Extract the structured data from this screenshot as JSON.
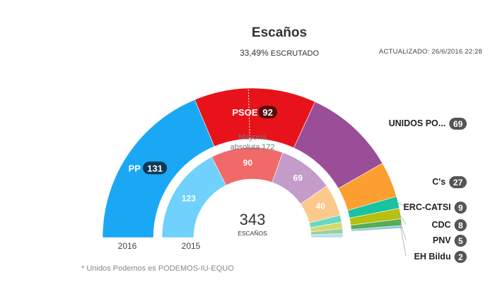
{
  "header": {
    "title": "Escaños",
    "escrutado_pct": "33,49%",
    "escrutado_label": "ESCRUTADO",
    "updated": "ACTUALIZADO: 26/6/2016 22:28"
  },
  "majority": {
    "line1": "Mayoría",
    "line2": "absoluta 172"
  },
  "center": {
    "total": "343",
    "label": "ESCAÑOS"
  },
  "year_labels": {
    "outer": "2016",
    "inner": "2015"
  },
  "footnote": "* Unidos Podemos es PODEMOS-IU-EQUO",
  "chart_data": [
    {
      "type": "donut",
      "title": "2016",
      "total": 350,
      "series": [
        {
          "name": "PP",
          "value": 131,
          "color": "#1aa8f5"
        },
        {
          "name": "PSOE",
          "value": 92,
          "color": "#e8131a"
        },
        {
          "name": "UNIDOS PO...",
          "value": 69,
          "color": "#9b4e98"
        },
        {
          "name": "C's",
          "value": 27,
          "color": "#fb9f30"
        },
        {
          "name": "ERC-CATSI",
          "value": 9,
          "color": "#19c2a1"
        },
        {
          "name": "CDC",
          "value": 8,
          "color": "#b7bf10"
        },
        {
          "name": "PNV",
          "value": 5,
          "color": "#58ac55"
        },
        {
          "name": "EH Bildu",
          "value": 2,
          "color": "#89c9dd"
        }
      ]
    },
    {
      "type": "donut",
      "title": "2015",
      "total": 350,
      "series": [
        {
          "name": "",
          "value": 123,
          "color": "#6fd1fc"
        },
        {
          "name": "",
          "value": 90,
          "color": "#f06a6a"
        },
        {
          "name": "",
          "value": 69,
          "color": "#c39cca"
        },
        {
          "name": "",
          "value": 40,
          "color": "#fdc88c"
        },
        {
          "name": "",
          "value": 9,
          "color": "#67d8c4"
        },
        {
          "name": "",
          "value": 8,
          "color": "#d3d870"
        },
        {
          "name": "",
          "value": 6,
          "color": "#9ccda0"
        },
        {
          "name": "",
          "value": 5,
          "color": "#b7e0ec"
        }
      ]
    }
  ]
}
